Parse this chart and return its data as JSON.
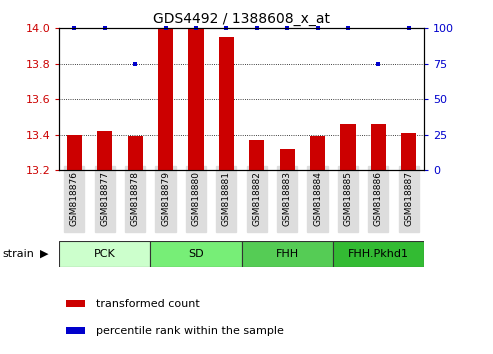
{
  "title": "GDS4492 / 1388608_x_at",
  "samples": [
    "GSM818876",
    "GSM818877",
    "GSM818878",
    "GSM818879",
    "GSM818880",
    "GSM818881",
    "GSM818882",
    "GSM818883",
    "GSM818884",
    "GSM818885",
    "GSM818886",
    "GSM818887"
  ],
  "red_values": [
    13.4,
    13.42,
    13.39,
    14.0,
    14.0,
    13.95,
    13.37,
    13.32,
    13.39,
    13.46,
    13.46,
    13.41
  ],
  "blue_values": [
    100,
    100,
    75,
    100,
    100,
    100,
    100,
    100,
    100,
    100,
    75,
    100
  ],
  "ylim_left": [
    13.2,
    14.0
  ],
  "ylim_right": [
    0,
    100
  ],
  "yticks_left": [
    13.2,
    13.4,
    13.6,
    13.8,
    14.0
  ],
  "yticks_right": [
    0,
    25,
    50,
    75,
    100
  ],
  "groups": [
    {
      "label": "PCK",
      "start": 0,
      "end": 2,
      "color": "#ccffcc"
    },
    {
      "label": "SD",
      "start": 3,
      "end": 5,
      "color": "#77ee77"
    },
    {
      "label": "FHH",
      "start": 6,
      "end": 8,
      "color": "#55cc55"
    },
    {
      "label": "FHH.Pkhd1",
      "start": 9,
      "end": 11,
      "color": "#33bb33"
    }
  ],
  "bar_color": "#cc0000",
  "dot_color": "#0000cc",
  "baseline": 13.2,
  "bar_width": 0.5,
  "tick_color_left": "#cc0000",
  "tick_color_right": "#0000cc",
  "xtick_bg": "#dddddd",
  "label_fontsize": 6.5,
  "group_fontsize": 8,
  "legend_fontsize": 8,
  "title_fontsize": 10
}
